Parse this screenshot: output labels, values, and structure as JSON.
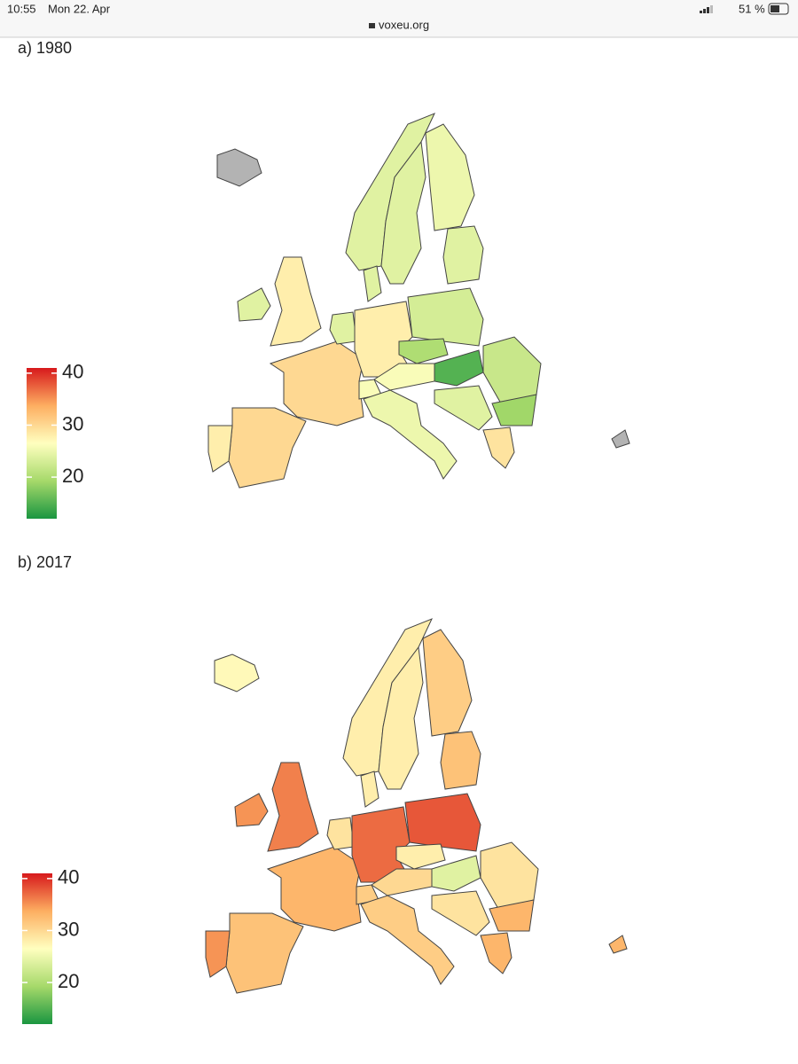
{
  "status_bar": {
    "time": "10:55",
    "date": "Mon 22. Apr",
    "url": "voxeu.org",
    "battery": "51 %"
  },
  "colorbar": {
    "lim": [
      12,
      41
    ],
    "ticks": [
      20,
      30,
      40
    ],
    "colormap": [
      "#1a9641",
      "#a6d96a",
      "#ffffbf",
      "#fdae61",
      "#d7191c"
    ],
    "missing_color": "#b3b3b3"
  },
  "maps": [
    {
      "title": "a) 1980",
      "values": [
        null,
        24,
        24,
        25,
        24,
        28,
        24,
        30,
        30,
        28,
        24,
        28,
        23,
        20,
        26,
        26,
        15,
        22,
        19,
        25,
        29,
        24,
        24,
        null
      ]
    },
    {
      "title": "b) 2017",
      "values": [
        27,
        28,
        28,
        31,
        32,
        36,
        35,
        33,
        32,
        35,
        29,
        37,
        38,
        28,
        30,
        31,
        24,
        29,
        33,
        31,
        33,
        29,
        28,
        33
      ]
    }
  ]
}
